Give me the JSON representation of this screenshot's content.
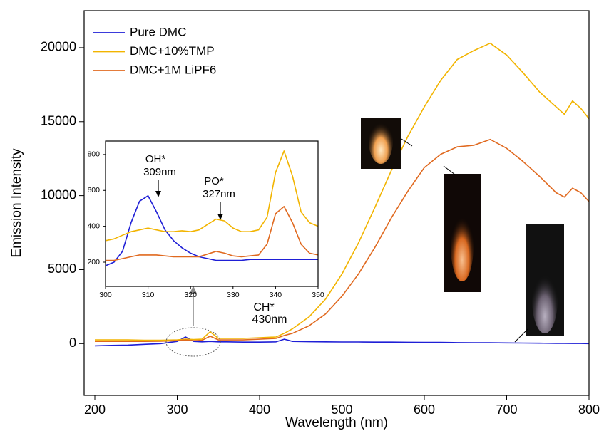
{
  "chart_data": [
    {
      "type": "line",
      "x_label": "Wavelength (nm)",
      "y_label": "Emission Intensity",
      "x": [
        200,
        220,
        240,
        260,
        280,
        300,
        310,
        320,
        330,
        340,
        350,
        360,
        380,
        400,
        420,
        430,
        440,
        460,
        480,
        500,
        520,
        540,
        560,
        580,
        600,
        620,
        640,
        660,
        680,
        700,
        720,
        740,
        760,
        770,
        780,
        790,
        800
      ],
      "series": [
        {
          "name": "Pure DMC",
          "color": "#1f1fd6",
          "values": [
            -150,
            -120,
            -100,
            -50,
            0,
            150,
            450,
            150,
            120,
            150,
            120,
            120,
            100,
            100,
            120,
            300,
            150,
            130,
            120,
            110,
            110,
            100,
            100,
            90,
            80,
            80,
            70,
            60,
            60,
            50,
            40,
            30,
            20,
            20,
            10,
            10,
            0
          ]
        },
        {
          "name": "DMC+10%TMP",
          "color": "#f2b400",
          "values": [
            250,
            250,
            250,
            230,
            230,
            250,
            300,
            280,
            300,
            800,
            350,
            350,
            350,
            400,
            450,
            700,
            1000,
            1800,
            3000,
            4700,
            6800,
            9200,
            11700,
            14000,
            16000,
            17800,
            19200,
            19800,
            20300,
            19500,
            18300,
            17000,
            16000,
            15500,
            16400,
            15900,
            15200
          ]
        },
        {
          "name": "DMC+1M LiPF6",
          "color": "#e0691f",
          "values": [
            150,
            150,
            150,
            150,
            160,
            200,
            250,
            200,
            220,
            500,
            250,
            250,
            250,
            300,
            350,
            550,
            700,
            1200,
            2000,
            3200,
            4700,
            6500,
            8500,
            10300,
            11900,
            12800,
            13300,
            13400,
            13800,
            13200,
            12300,
            11300,
            10200,
            9900,
            10500,
            10200,
            9600
          ]
        }
      ],
      "xlim": [
        187,
        800
      ],
      "xticks": [
        200,
        300,
        400,
        500,
        600,
        700,
        800
      ],
      "ylim": [
        -3500,
        22500
      ],
      "yticks": [
        0,
        5000,
        10000,
        15000,
        20000
      ],
      "legend": "upper left",
      "annotations": [
        "CH*",
        "430nm"
      ]
    },
    {
      "type": "line",
      "x": [
        300,
        302,
        304,
        306,
        308,
        310,
        312,
        314,
        316,
        318,
        320,
        322,
        324,
        326,
        328,
        330,
        332,
        334,
        336,
        338,
        340,
        342,
        344,
        346,
        348,
        350
      ],
      "series": [
        {
          "color": "#1f1fd6",
          "values": [
            180,
            200,
            260,
            420,
            540,
            570,
            480,
            380,
            320,
            280,
            250,
            230,
            220,
            210,
            210,
            210,
            210,
            215,
            215,
            215,
            215,
            215,
            215,
            215,
            215,
            215
          ]
        },
        {
          "color": "#f2b400",
          "values": [
            320,
            330,
            350,
            370,
            380,
            390,
            380,
            370,
            370,
            375,
            370,
            380,
            410,
            440,
            430,
            390,
            370,
            370,
            380,
            450,
            700,
            820,
            680,
            480,
            420,
            400
          ]
        },
        {
          "color": "#e0691f",
          "values": [
            210,
            210,
            220,
            230,
            240,
            240,
            240,
            235,
            230,
            230,
            230,
            230,
            245,
            260,
            250,
            235,
            230,
            235,
            240,
            300,
            470,
            510,
            420,
            300,
            250,
            240
          ]
        }
      ],
      "xlim": [
        300,
        350
      ],
      "xticks": [
        300,
        310,
        320,
        330,
        340,
        350
      ],
      "ylim": [
        65,
        875
      ],
      "yticks": [
        200,
        400,
        600,
        800
      ],
      "annotations": [
        "OH*",
        "309nm",
        "PO*",
        "327nm"
      ]
    }
  ]
}
